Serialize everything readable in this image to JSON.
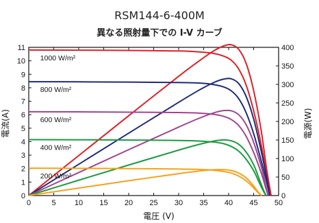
{
  "chart_data": {
    "type": "line",
    "title": "RSM144-6-400M",
    "subtitle": "異なる照射量下での I-V カーブ",
    "xlabel": "電圧 (V)",
    "ylabel_left": "電流(A)",
    "ylabel_right": "電源(W)",
    "xlim": [
      0,
      50
    ],
    "ylim_left": [
      0,
      11
    ],
    "ylim_right": [
      0,
      400
    ],
    "x_ticks": [
      0,
      5,
      10,
      15,
      20,
      25,
      30,
      35,
      40,
      45,
      50
    ],
    "y_ticks_left": [
      0,
      1,
      2,
      3,
      4,
      5,
      6,
      7,
      8,
      9,
      10,
      11
    ],
    "y_ticks_right": [
      0,
      50,
      100,
      150,
      200,
      250,
      300,
      350,
      400
    ],
    "grid": false,
    "series": [
      {
        "name": "1000 W/m²",
        "color": "#e01f26",
        "iv": [
          [
            0,
            10.8
          ],
          [
            10,
            10.79
          ],
          [
            20,
            10.77
          ],
          [
            30,
            10.73
          ],
          [
            34,
            10.66
          ],
          [
            37,
            10.55
          ],
          [
            39,
            10.35
          ],
          [
            40.5,
            10.05
          ],
          [
            42,
            9.4
          ],
          [
            43.5,
            8.2
          ],
          [
            45,
            6.3
          ],
          [
            46.5,
            3.8
          ],
          [
            47.6,
            1.5
          ],
          [
            48.5,
            0
          ]
        ],
        "pv": [
          [
            0,
            0
          ],
          [
            10,
            107.9
          ],
          [
            20,
            215.4
          ],
          [
            30,
            321.9
          ],
          [
            34,
            362.4
          ],
          [
            37,
            390.4
          ],
          [
            39,
            403.7
          ],
          [
            40.5,
            407
          ],
          [
            42,
            394.8
          ],
          [
            43.5,
            356.7
          ],
          [
            45,
            283.5
          ],
          [
            46.5,
            176.7
          ],
          [
            47.6,
            71.4
          ],
          [
            48.5,
            0
          ]
        ]
      },
      {
        "name": "800 W/m²",
        "color": "#1f2a7a",
        "iv": [
          [
            0,
            8.45
          ],
          [
            10,
            8.44
          ],
          [
            20,
            8.42
          ],
          [
            30,
            8.39
          ],
          [
            34,
            8.35
          ],
          [
            37,
            8.24
          ],
          [
            39,
            8.06
          ],
          [
            40.5,
            7.78
          ],
          [
            42,
            7.2
          ],
          [
            43.5,
            6.15
          ],
          [
            45,
            4.6
          ],
          [
            46.5,
            2.6
          ],
          [
            47.6,
            1.0
          ],
          [
            48.2,
            0
          ]
        ],
        "pv": [
          [
            0,
            0
          ],
          [
            10,
            84.4
          ],
          [
            20,
            168.4
          ],
          [
            30,
            251.7
          ],
          [
            34,
            283.9
          ],
          [
            37,
            304.9
          ],
          [
            39,
            314.3
          ],
          [
            40.5,
            315.1
          ],
          [
            42,
            302.4
          ],
          [
            43.5,
            267.5
          ],
          [
            45,
            207
          ],
          [
            46.5,
            120.9
          ],
          [
            47.6,
            47.6
          ],
          [
            48.2,
            0
          ]
        ]
      },
      {
        "name": "600 W/m²",
        "color": "#a0448e",
        "iv": [
          [
            0,
            6.22
          ],
          [
            10,
            6.21
          ],
          [
            20,
            6.19
          ],
          [
            30,
            6.16
          ],
          [
            34,
            6.12
          ],
          [
            37,
            6.03
          ],
          [
            39,
            5.88
          ],
          [
            40.5,
            5.65
          ],
          [
            42,
            5.2
          ],
          [
            43.5,
            4.4
          ],
          [
            45,
            3.2
          ],
          [
            46.5,
            1.7
          ],
          [
            47.4,
            0.6
          ],
          [
            47.9,
            0
          ]
        ],
        "pv": [
          [
            0,
            0
          ],
          [
            10,
            62.1
          ],
          [
            20,
            123.8
          ],
          [
            30,
            184.8
          ],
          [
            34,
            208.1
          ],
          [
            37,
            223.1
          ],
          [
            39,
            229.3
          ],
          [
            40.5,
            228.8
          ],
          [
            42,
            218.4
          ],
          [
            43.5,
            191.4
          ],
          [
            45,
            144
          ],
          [
            46.5,
            79.1
          ],
          [
            47.4,
            28.4
          ],
          [
            47.9,
            0
          ]
        ]
      },
      {
        "name": "400 W/m²",
        "color": "#1b9a3f",
        "iv": [
          [
            0,
            4.15
          ],
          [
            10,
            4.14
          ],
          [
            20,
            4.12
          ],
          [
            30,
            4.09
          ],
          [
            34,
            4.05
          ],
          [
            37,
            3.97
          ],
          [
            39,
            3.85
          ],
          [
            40.5,
            3.65
          ],
          [
            42,
            3.3
          ],
          [
            43.5,
            2.7
          ],
          [
            45,
            1.85
          ],
          [
            46.2,
            0.9
          ],
          [
            47.0,
            0.3
          ],
          [
            47.5,
            0
          ]
        ],
        "pv": [
          [
            0,
            0
          ],
          [
            10,
            41.4
          ],
          [
            20,
            82.4
          ],
          [
            30,
            122.7
          ],
          [
            34,
            137.7
          ],
          [
            37,
            146.9
          ],
          [
            39,
            150.2
          ],
          [
            40.5,
            147.8
          ],
          [
            42,
            138.6
          ],
          [
            43.5,
            117.5
          ],
          [
            45,
            83.3
          ],
          [
            46.2,
            41.6
          ],
          [
            47.0,
            14.1
          ],
          [
            47.5,
            0
          ]
        ]
      },
      {
        "name": "200 W/m²",
        "color": "#f5a21b",
        "iv": [
          [
            0,
            2.03
          ],
          [
            10,
            2.02
          ],
          [
            20,
            2.0
          ],
          [
            30,
            1.97
          ],
          [
            34,
            1.94
          ],
          [
            37,
            1.88
          ],
          [
            39,
            1.79
          ],
          [
            40.5,
            1.67
          ],
          [
            42,
            1.45
          ],
          [
            43.5,
            1.1
          ],
          [
            44.8,
            0.65
          ],
          [
            45.8,
            0.25
          ],
          [
            46.6,
            0
          ]
        ],
        "pv": [
          [
            0,
            0
          ],
          [
            10,
            20.2
          ],
          [
            20,
            40
          ],
          [
            30,
            59.1
          ],
          [
            34,
            66
          ],
          [
            37,
            69.6
          ],
          [
            39,
            69.8
          ],
          [
            40.5,
            67.6
          ],
          [
            42,
            60.9
          ],
          [
            43.5,
            47.9
          ],
          [
            44.8,
            29.1
          ],
          [
            45.8,
            11.5
          ],
          [
            46.6,
            0
          ]
        ]
      }
    ]
  }
}
